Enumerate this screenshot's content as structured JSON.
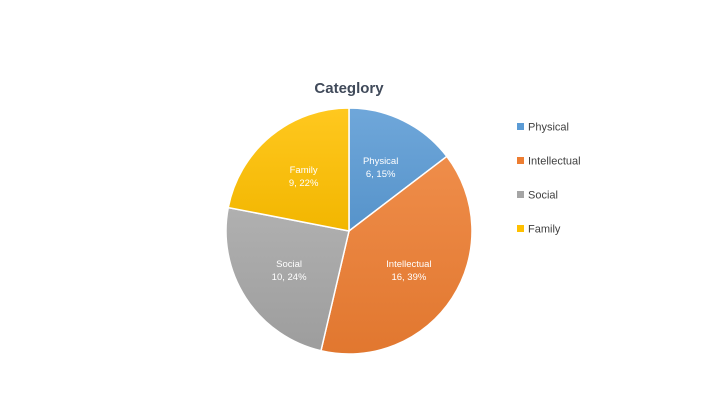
{
  "chart_data": {
    "type": "pie",
    "title": "Categlory",
    "categories": [
      "Physical",
      "Intellectual",
      "Social",
      "Family"
    ],
    "values": [
      6,
      16,
      10,
      9
    ],
    "percent_labels": [
      "15%",
      "39%",
      "24%",
      "22%"
    ],
    "colors": [
      "#5b9bd5",
      "#ed7d31",
      "#a5a5a5",
      "#ffc000"
    ],
    "data_label_content": "category, value, percent",
    "legend": "right",
    "start_angle_deg": 0,
    "direction": "clockwise",
    "style": "gradient"
  }
}
